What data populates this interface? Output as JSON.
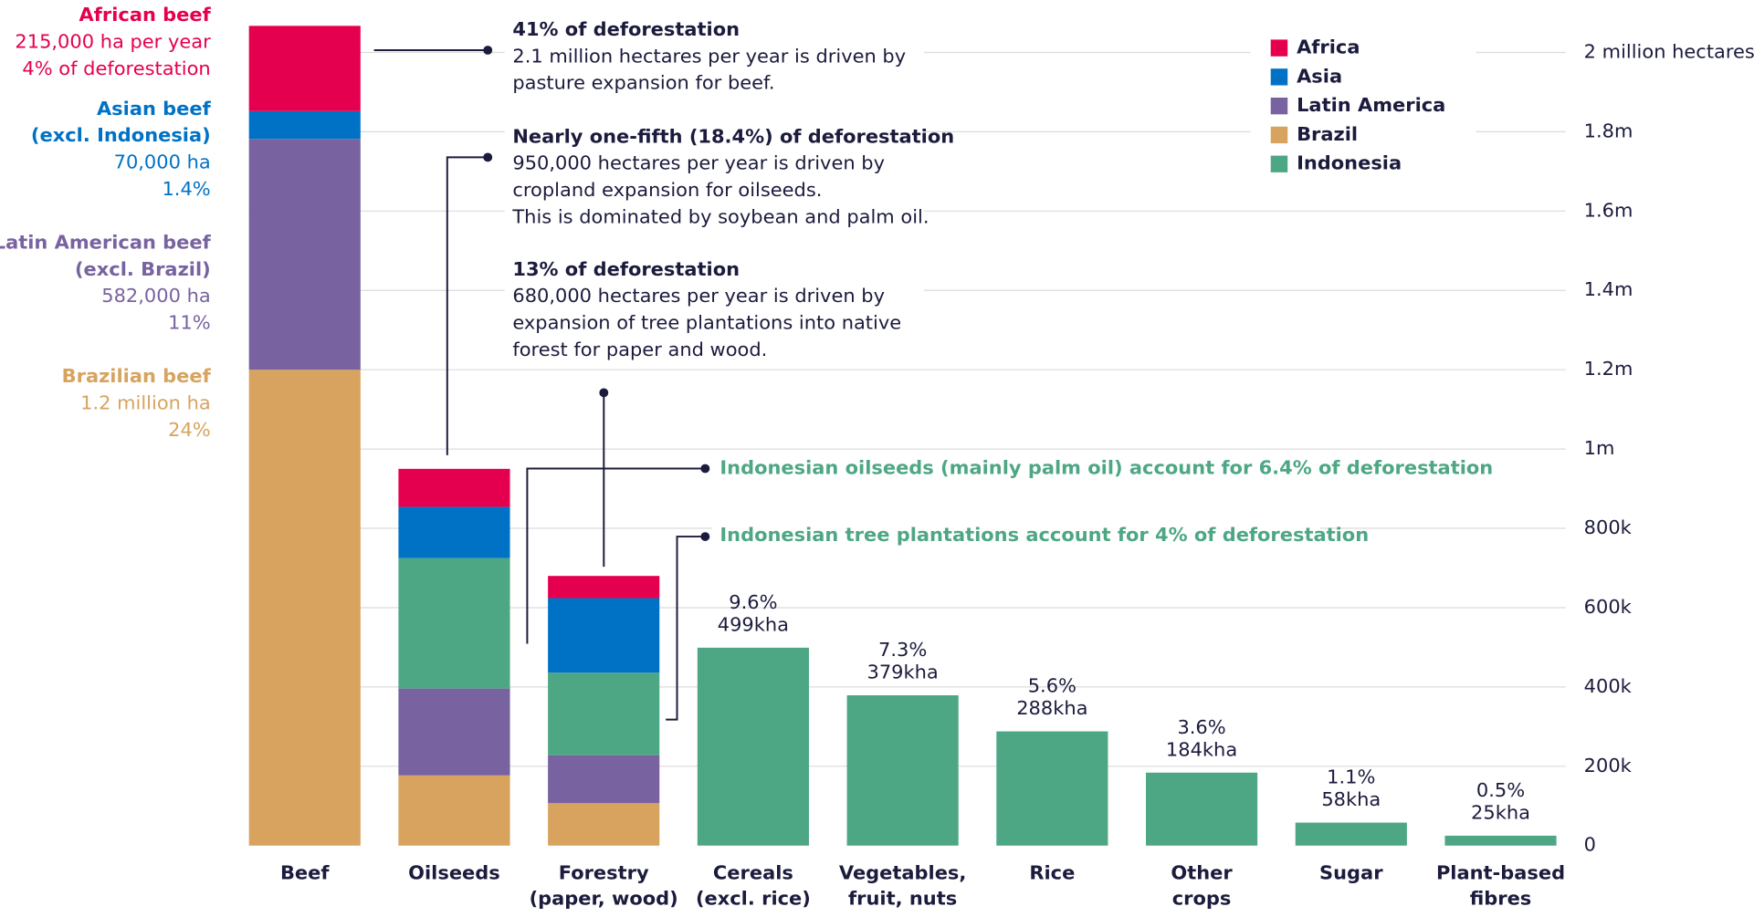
{
  "chart_data": {
    "type": "stacked_bar",
    "categories": [
      [
        "Beef"
      ],
      [
        "Oilseeds"
      ],
      [
        "Forestry",
        "(paper, wood)"
      ],
      [
        "Cereals",
        "(excl. rice)"
      ],
      [
        "Vegetables,",
        "fruit, nuts"
      ],
      [
        "Rice"
      ],
      [
        "Other",
        "crops"
      ],
      [
        "Sugar"
      ],
      [
        "Plant-based",
        "fibres"
      ]
    ],
    "series": [
      {
        "name": "Brazil",
        "color": "#d7a35f",
        "values": [
          1200000,
          177000,
          107000,
          null,
          null,
          null,
          null,
          null,
          null
        ]
      },
      {
        "name": "Latin America",
        "color": "#7862a0",
        "values": [
          582000,
          219000,
          121000,
          null,
          null,
          null,
          null,
          null,
          null
        ]
      },
      {
        "name": "Indonesia",
        "color": "#4ea784",
        "values": [
          null,
          329000,
          208000,
          null,
          null,
          null,
          null,
          null,
          null
        ]
      },
      {
        "name": "Asia",
        "color": "#0072c6",
        "values": [
          70000,
          129000,
          188000,
          null,
          null,
          null,
          null,
          null,
          null
        ]
      },
      {
        "name": "Africa",
        "color": "#e5004f",
        "values": [
          215000,
          96000,
          56000,
          null,
          null,
          null,
          null,
          null,
          null
        ]
      }
    ],
    "values": [
      null,
      null,
      null,
      499000,
      379000,
      288000,
      184000,
      58000,
      25000
    ],
    "value_labels": [
      null,
      null,
      null,
      "499kha",
      "379kha",
      "288kha",
      "184kha",
      "58kha",
      "25kha"
    ],
    "share_labels": [
      null,
      null,
      null,
      "9.6%",
      "7.3%",
      "5.6%",
      "3.6%",
      "1.1%",
      "0.5%"
    ],
    "color": "#4ea784",
    "ylim": [
      0,
      2130000
    ],
    "yticks": [
      0,
      {
        "value": 200000,
        "label": "200k"
      },
      {
        "value": 400000,
        "label": "400k"
      },
      {
        "value": 600000,
        "label": "600k"
      },
      {
        "value": 800000,
        "label": "800k"
      },
      {
        "value": 1000000,
        "label": "1m"
      },
      {
        "value": 1200000,
        "label": "1.2m"
      },
      {
        "value": 1400000,
        "label": "1.4m"
      },
      {
        "value": 1600000,
        "label": "1.6m"
      },
      {
        "value": 1800000,
        "label": "1.8m"
      },
      {
        "value": 2000000,
        "label": "2 million hectares"
      }
    ],
    "grid": true,
    "legend": "top-right",
    "beef_labels": [
      [
        "African beef",
        "215,000 ha per year",
        "4% of deforestation"
      ],
      [
        "Asian beef",
        "(excl. Indonesia)",
        "70,000 ha",
        "1.4%"
      ],
      [
        "Latin American beef",
        "(excl. Brazil)",
        "582,000 ha",
        "11%"
      ],
      [
        "Brazilian beef",
        "1.2 million ha",
        "24%"
      ]
    ],
    "notes": [
      [
        "41% of deforestation",
        "2.1 million hectares per year is driven by",
        "pasture expansion for beef."
      ],
      [
        "Nearly one-fifth (18.4%) of deforestation",
        "950,000 hectares per year is driven by",
        "cropland expansion for oilseeds.",
        "This is dominated by soybean and palm oil."
      ],
      [
        "13% of deforestation",
        "680,000 hectares per year is driven by",
        "expansion of tree plantations into native",
        "forest for paper and wood."
      ]
    ],
    "green_notes": [
      "Indonesian oilseeds (mainly palm oil) account for 6.4% of deforestation",
      "Indonesian tree plantations account for 4% of deforestation"
    ]
  }
}
